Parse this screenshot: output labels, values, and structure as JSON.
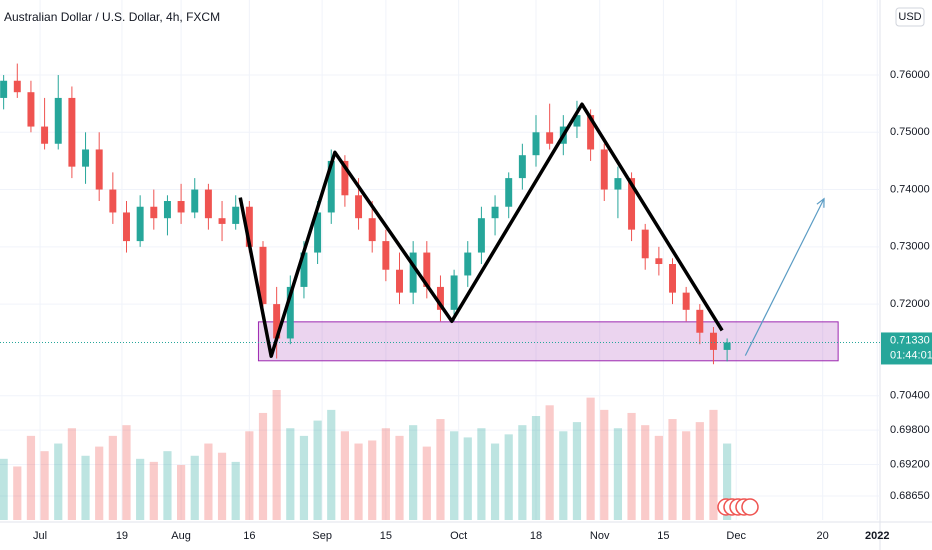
{
  "chart_data": {
    "type": "candlestick",
    "title": "Australian Dollar / U.S. Dollar, 4h, FXCM",
    "currency": "USD",
    "up_color": "#26a69a",
    "down_color": "#ef5350",
    "grid": true,
    "xlim": [
      173.2,
      366.6
    ],
    "ylim": [
      0.6823,
      0.7731
    ],
    "xticks": [
      {
        "value": 182,
        "label": "Jul"
      },
      {
        "value": 200,
        "label": "19"
      },
      {
        "value": 213,
        "label": "Aug"
      },
      {
        "value": 228,
        "label": "16"
      },
      {
        "value": 244,
        "label": "Sep"
      },
      {
        "value": 258,
        "label": "15"
      },
      {
        "value": 274,
        "label": "Oct"
      },
      {
        "value": 291,
        "label": "18"
      },
      {
        "value": 305,
        "label": "Nov"
      },
      {
        "value": 319,
        "label": "15"
      },
      {
        "value": 335,
        "label": "Dec"
      },
      {
        "value": 354,
        "label": "20"
      },
      {
        "value": 366,
        "label": "2022"
      }
    ],
    "yticks": [
      {
        "value": 0.76,
        "label": "0.76000"
      },
      {
        "value": 0.75,
        "label": "0.75000"
      },
      {
        "value": 0.74,
        "label": "0.74000"
      },
      {
        "value": 0.73,
        "label": "0.73000"
      },
      {
        "value": 0.72,
        "label": "0.72000"
      },
      {
        "value": 0.704,
        "label": "0.70400"
      },
      {
        "value": 0.698,
        "label": "0.69800"
      },
      {
        "value": 0.692,
        "label": "0.69200"
      },
      {
        "value": 0.6865,
        "label": "0.68650"
      }
    ],
    "last_price": {
      "value": 0.7133,
      "label": "0.71330",
      "countdown": "01:44:01",
      "color": "#26a69a"
    },
    "x": [
      174,
      177,
      180,
      183,
      186,
      189,
      192,
      195,
      198,
      201,
      204,
      207,
      210,
      213,
      216,
      219,
      222,
      225,
      228,
      231,
      234,
      237,
      240,
      243,
      246,
      249,
      252,
      255,
      258,
      261,
      264,
      267,
      270,
      273,
      276,
      279,
      282,
      285,
      288,
      291,
      294,
      297,
      300,
      303,
      306,
      309,
      312,
      315,
      318,
      321,
      324,
      327,
      330,
      333
    ],
    "open": [
      0.756,
      0.759,
      0.757,
      0.751,
      0.748,
      0.756,
      0.744,
      0.747,
      0.74,
      0.736,
      0.731,
      0.737,
      0.735,
      0.738,
      0.736,
      0.74,
      0.735,
      0.734,
      0.737,
      0.73,
      0.72,
      0.714,
      0.723,
      0.729,
      0.736,
      0.745,
      0.739,
      0.735,
      0.731,
      0.726,
      0.722,
      0.729,
      0.723,
      0.719,
      0.725,
      0.729,
      0.735,
      0.737,
      0.742,
      0.746,
      0.75,
      0.748,
      0.751,
      0.753,
      0.747,
      0.74,
      0.742,
      0.733,
      0.728,
      0.727,
      0.722,
      0.719,
      0.715,
      0.712
    ],
    "high": [
      0.76,
      0.762,
      0.759,
      0.756,
      0.76,
      0.758,
      0.75,
      0.75,
      0.743,
      0.738,
      0.739,
      0.74,
      0.739,
      0.741,
      0.742,
      0.741,
      0.738,
      0.739,
      0.738,
      0.731,
      0.723,
      0.725,
      0.731,
      0.738,
      0.747,
      0.746,
      0.742,
      0.738,
      0.733,
      0.729,
      0.731,
      0.731,
      0.725,
      0.726,
      0.731,
      0.737,
      0.739,
      0.743,
      0.748,
      0.753,
      0.755,
      0.753,
      0.7555,
      0.754,
      0.748,
      0.744,
      0.743,
      0.734,
      0.73,
      0.728,
      0.723,
      0.72,
      0.716,
      0.714
    ],
    "low": [
      0.754,
      0.756,
      0.75,
      0.747,
      0.747,
      0.742,
      0.741,
      0.738,
      0.734,
      0.729,
      0.73,
      0.733,
      0.732,
      0.734,
      0.735,
      0.733,
      0.731,
      0.733,
      0.729,
      0.719,
      0.7105,
      0.713,
      0.721,
      0.727,
      0.734,
      0.737,
      0.733,
      0.729,
      0.724,
      0.72,
      0.72,
      0.721,
      0.717,
      0.717,
      0.723,
      0.727,
      0.732,
      0.735,
      0.74,
      0.744,
      0.747,
      0.746,
      0.749,
      0.745,
      0.738,
      0.735,
      0.731,
      0.726,
      0.725,
      0.72,
      0.717,
      0.713,
      0.7095,
      0.71
    ],
    "close": [
      0.759,
      0.757,
      0.751,
      0.748,
      0.756,
      0.744,
      0.747,
      0.74,
      0.736,
      0.731,
      0.737,
      0.735,
      0.738,
      0.736,
      0.74,
      0.735,
      0.734,
      0.737,
      0.73,
      0.72,
      0.714,
      0.723,
      0.729,
      0.736,
      0.745,
      0.739,
      0.735,
      0.731,
      0.726,
      0.722,
      0.729,
      0.723,
      0.719,
      0.725,
      0.729,
      0.735,
      0.737,
      0.742,
      0.746,
      0.75,
      0.748,
      0.751,
      0.753,
      0.747,
      0.74,
      0.742,
      0.733,
      0.728,
      0.727,
      0.722,
      0.719,
      0.715,
      0.712,
      0.7133
    ],
    "volume": [
      40,
      35,
      55,
      45,
      50,
      60,
      42,
      48,
      55,
      62,
      40,
      38,
      45,
      36,
      42,
      50,
      44,
      38,
      58,
      70,
      85,
      60,
      55,
      65,
      72,
      58,
      50,
      52,
      60,
      55,
      62,
      48,
      66,
      58,
      54,
      60,
      50,
      56,
      62,
      68,
      75,
      58,
      64,
      80,
      72,
      60,
      70,
      62,
      55,
      66,
      58,
      64,
      72,
      50
    ],
    "drawings": {
      "zigzag": {
        "color": "#000000",
        "x": [
          226,
          232.8,
          246.8,
          272.5,
          301.1,
          331.9
        ],
        "y": [
          0.7386,
          0.7109,
          0.7465,
          0.717,
          0.7549,
          0.7154
        ]
      },
      "zone": {
        "color": "#9c27b0",
        "x": [
          230,
          357.4
        ],
        "y": [
          0.7101,
          0.7169
        ]
      },
      "arrow": {
        "color": "#5b9cc4",
        "x": [
          337,
          354.3
        ],
        "y": [
          0.711,
          0.7384
        ]
      }
    }
  }
}
